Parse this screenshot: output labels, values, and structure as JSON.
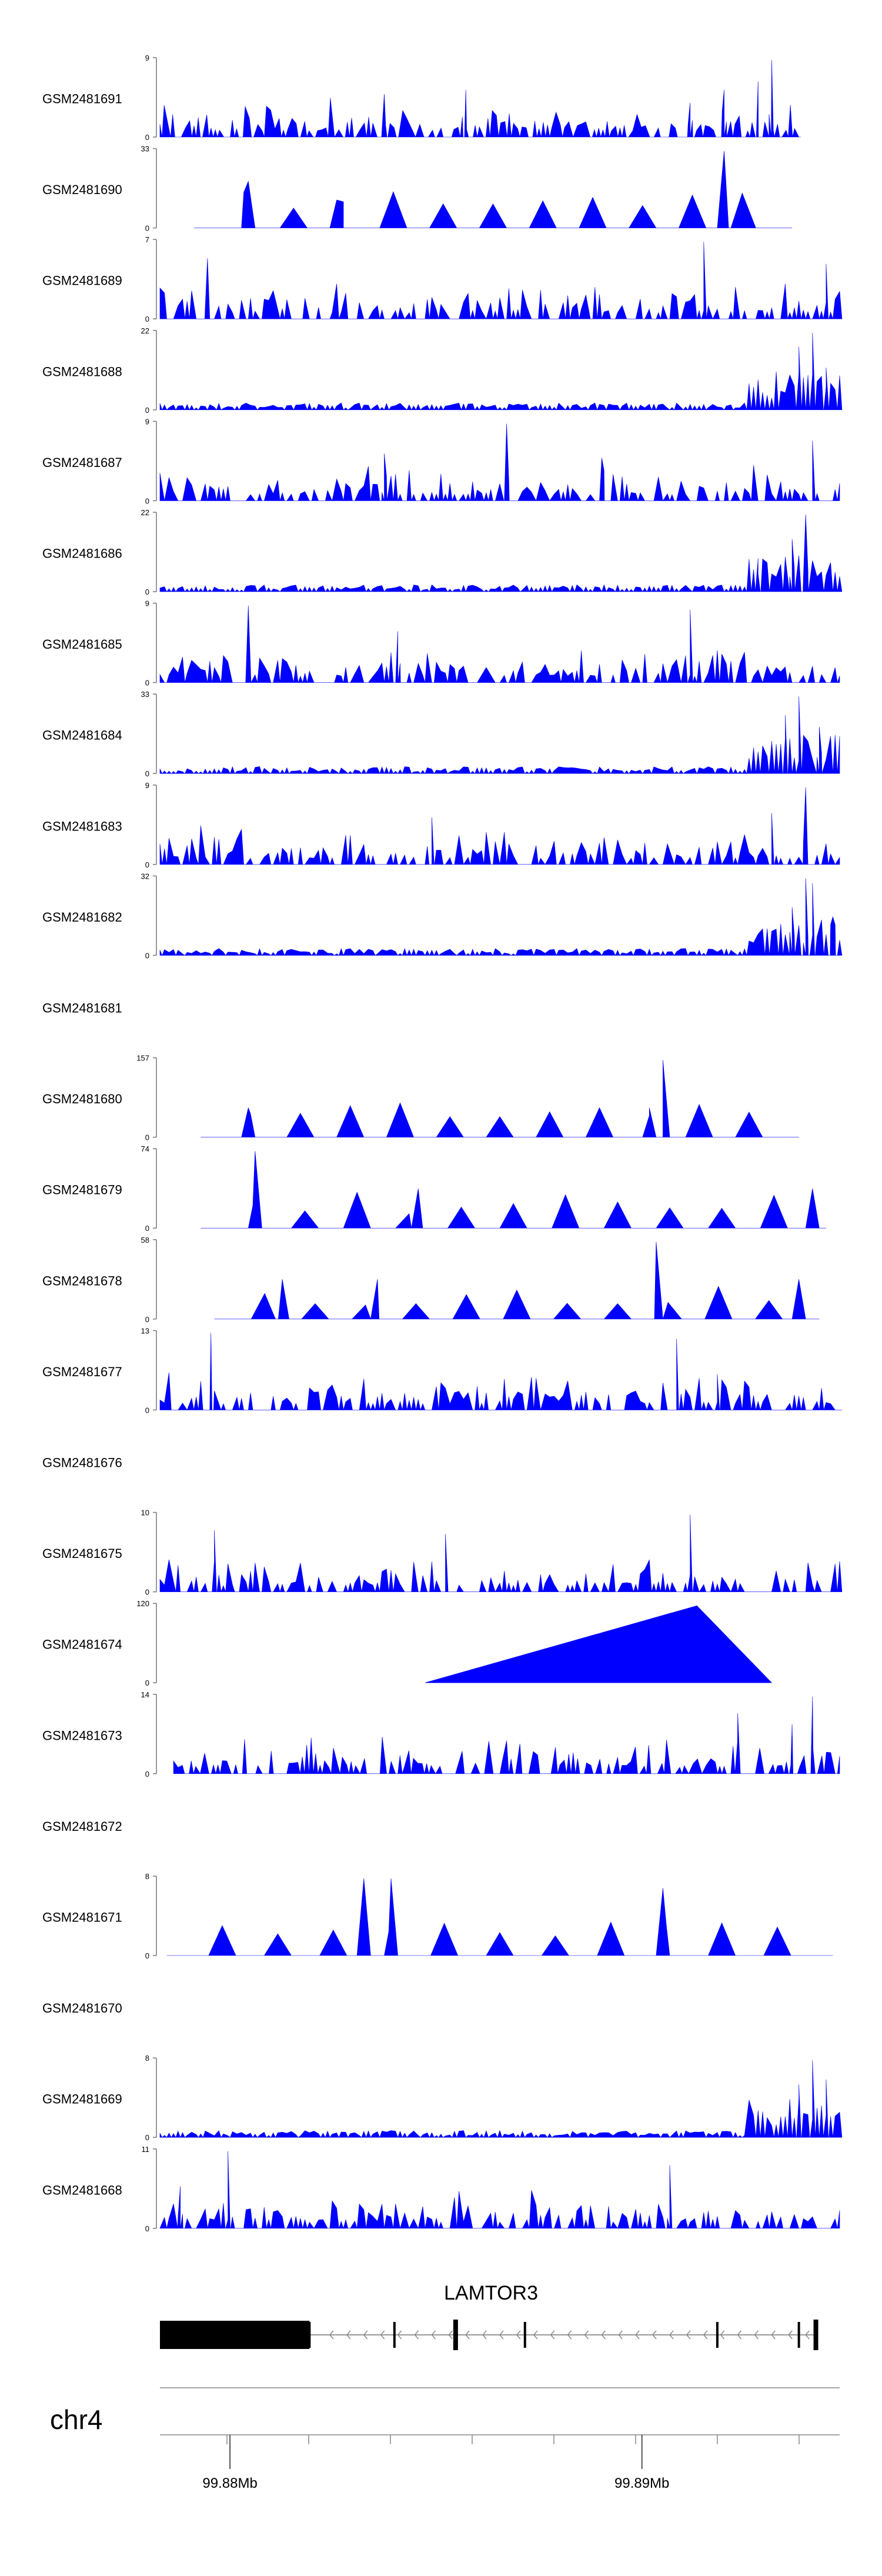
{
  "chart_data": {
    "type": "area",
    "title": "",
    "xlabel": "",
    "ylabel": "",
    "fill_color": "#0000ff",
    "x_range_mb": [
      99.8783,
      99.8948
    ],
    "series": [
      {
        "name": "GSM2481691",
        "ylim": [
          0,
          9
        ],
        "tick_max": "9",
        "tick_min": "0",
        "has_data": true,
        "coverage": [
          0,
          0.94
        ],
        "seed": 11,
        "peaks": [
          [
            0.9,
            9.0
          ],
          [
            0.88,
            6.5
          ],
          [
            0.83,
            5.5
          ],
          [
            0.78,
            4.0
          ],
          [
            0.45,
            5.5
          ],
          [
            0.33,
            5.0
          ]
        ]
      },
      {
        "name": "GSM2481690",
        "ylim": [
          0,
          33
        ],
        "tick_max": "33",
        "tick_min": "0",
        "has_data": true,
        "coverage": [
          0.05,
          0.93
        ],
        "seed": 23,
        "mode": "sparse",
        "peaks": [
          [
            0.83,
            33.0
          ],
          [
            0.13,
            20.0
          ],
          [
            0.26,
            12.0
          ]
        ]
      },
      {
        "name": "GSM2481689",
        "ylim": [
          0,
          7
        ],
        "tick_max": "7",
        "tick_min": "0",
        "has_data": true,
        "coverage": [
          0,
          1
        ],
        "seed": 37,
        "peaks": [
          [
            0.8,
            7.0
          ],
          [
            0.07,
            5.5
          ],
          [
            0.98,
            5.0
          ]
        ]
      },
      {
        "name": "GSM2481688",
        "ylim": [
          0,
          22
        ],
        "tick_max": "22",
        "tick_min": "0",
        "has_data": true,
        "coverage": [
          0,
          1
        ],
        "seed": 41,
        "mode": "tail",
        "peaks": [
          [
            0.96,
            22.0
          ],
          [
            0.94,
            18.0
          ],
          [
            0.98,
            12.0
          ]
        ]
      },
      {
        "name": "GSM2481687",
        "ylim": [
          0,
          9
        ],
        "tick_max": "9",
        "tick_min": "0",
        "has_data": true,
        "coverage": [
          0,
          1
        ],
        "seed": 53,
        "peaks": [
          [
            0.51,
            9.0
          ],
          [
            0.96,
            7.0
          ],
          [
            0.33,
            5.5
          ],
          [
            0.65,
            5.0
          ]
        ]
      },
      {
        "name": "GSM2481686",
        "ylim": [
          0,
          22
        ],
        "tick_max": "22",
        "tick_min": "0",
        "has_data": true,
        "coverage": [
          0,
          1
        ],
        "seed": 67,
        "mode": "tail",
        "peaks": [
          [
            0.95,
            22.0
          ],
          [
            0.93,
            15.0
          ],
          [
            0.88,
            5.0
          ]
        ]
      },
      {
        "name": "GSM2481685",
        "ylim": [
          0,
          9
        ],
        "tick_max": "9",
        "tick_min": "0",
        "has_data": true,
        "coverage": [
          0,
          1
        ],
        "seed": 71,
        "peaks": [
          [
            0.13,
            9.0
          ],
          [
            0.78,
            8.5
          ],
          [
            0.35,
            6.0
          ]
        ]
      },
      {
        "name": "GSM2481684",
        "ylim": [
          0,
          33
        ],
        "tick_max": "33",
        "tick_min": "0",
        "has_data": true,
        "coverage": [
          0,
          1
        ],
        "seed": 83,
        "mode": "tail",
        "peaks": [
          [
            0.94,
            33.0
          ],
          [
            0.92,
            25.0
          ],
          [
            0.97,
            20.0
          ],
          [
            0.9,
            14.0
          ]
        ]
      },
      {
        "name": "GSM2481683",
        "ylim": [
          0,
          9
        ],
        "tick_max": "9",
        "tick_min": "0",
        "has_data": true,
        "coverage": [
          0,
          1
        ],
        "seed": 97,
        "peaks": [
          [
            0.95,
            9.0
          ],
          [
            0.9,
            6.0
          ],
          [
            0.4,
            5.5
          ]
        ]
      },
      {
        "name": "GSM2481682",
        "ylim": [
          0,
          32
        ],
        "tick_max": "32",
        "tick_min": "0",
        "has_data": true,
        "coverage": [
          0,
          1
        ],
        "seed": 101,
        "mode": "tail",
        "peaks": [
          [
            0.95,
            32.0
          ],
          [
            0.96,
            30.0
          ],
          [
            0.93,
            20.0
          ],
          [
            0.99,
            16.0
          ]
        ]
      },
      {
        "name": "GSM2481681",
        "has_data": false
      },
      {
        "name": "GSM2481680",
        "ylim": [
          0,
          157
        ],
        "tick_max": "157",
        "tick_min": "0",
        "has_data": true,
        "coverage": [
          0.06,
          0.94
        ],
        "seed": 113,
        "mode": "sparse",
        "peaks": [
          [
            0.74,
            157.0
          ],
          [
            0.72,
            60.0
          ],
          [
            0.13,
            60.0
          ]
        ]
      },
      {
        "name": "GSM2481679",
        "ylim": [
          0,
          74
        ],
        "tick_max": "74",
        "tick_min": "0",
        "has_data": true,
        "coverage": [
          0.06,
          0.98
        ],
        "seed": 127,
        "mode": "sparse",
        "peaks": [
          [
            0.14,
            74.0
          ],
          [
            0.38,
            38.0
          ],
          [
            0.96,
            38.0
          ]
        ]
      },
      {
        "name": "GSM2481678",
        "ylim": [
          0,
          58
        ],
        "tick_max": "58",
        "tick_min": "0",
        "has_data": true,
        "coverage": [
          0.08,
          0.97
        ],
        "seed": 131,
        "mode": "sparse",
        "peaks": [
          [
            0.73,
            58.0
          ],
          [
            0.94,
            30.0
          ],
          [
            0.18,
            30.0
          ],
          [
            0.32,
            30.0
          ]
        ]
      },
      {
        "name": "GSM2481677",
        "ylim": [
          0,
          13
        ],
        "tick_max": "13",
        "tick_min": "0",
        "has_data": true,
        "coverage": [
          0,
          1
        ],
        "seed": 139,
        "peaks": [
          [
            0.075,
            13.0
          ],
          [
            0.76,
            12.0
          ],
          [
            0.82,
            6.0
          ]
        ]
      },
      {
        "name": "GSM2481676",
        "has_data": false
      },
      {
        "name": "GSM2481675",
        "ylim": [
          0,
          10
        ],
        "tick_max": "10",
        "tick_min": "0",
        "has_data": true,
        "coverage": [
          0,
          1
        ],
        "seed": 149,
        "peaks": [
          [
            0.78,
            10.0
          ],
          [
            0.08,
            8.0
          ],
          [
            0.42,
            7.5
          ]
        ]
      },
      {
        "name": "GSM2481674",
        "ylim": [
          0,
          120
        ],
        "tick_max": "120",
        "tick_min": "0",
        "has_data": true,
        "coverage": [
          0.39,
          0.9
        ],
        "seed": 151,
        "mode": "single",
        "peaks": [
          [
            0.79,
            120.0
          ]
        ]
      },
      {
        "name": "GSM2481673",
        "ylim": [
          0,
          14
        ],
        "tick_max": "14",
        "tick_min": "0",
        "has_data": true,
        "coverage": [
          0.02,
          1
        ],
        "seed": 163,
        "peaks": [
          [
            0.96,
            14.0
          ],
          [
            0.85,
            11.0
          ],
          [
            0.93,
            9.0
          ]
        ]
      },
      {
        "name": "GSM2481672",
        "has_data": false
      },
      {
        "name": "GSM2481671",
        "ylim": [
          0,
          8
        ],
        "tick_max": "8",
        "tick_min": "0",
        "has_data": true,
        "coverage": [
          0.01,
          0.99
        ],
        "seed": 167,
        "mode": "sparse",
        "peaks": [
          [
            0.3,
            8.0
          ],
          [
            0.34,
            8.0
          ],
          [
            0.74,
            7.0
          ]
        ]
      },
      {
        "name": "GSM2481670",
        "has_data": false
      },
      {
        "name": "GSM2481669",
        "ylim": [
          0,
          8
        ],
        "tick_max": "8",
        "tick_min": "0",
        "has_data": true,
        "coverage": [
          0,
          1
        ],
        "seed": 173,
        "mode": "tail",
        "peaks": [
          [
            0.96,
            8.0
          ],
          [
            0.98,
            6.0
          ],
          [
            0.94,
            5.5
          ]
        ]
      },
      {
        "name": "GSM2481668",
        "ylim": [
          0,
          11
        ],
        "tick_max": "11",
        "tick_min": "0",
        "has_data": true,
        "coverage": [
          0,
          1
        ],
        "seed": 179,
        "peaks": [
          [
            0.1,
            11.0
          ],
          [
            0.75,
            9.0
          ],
          [
            0.03,
            6.0
          ]
        ]
      }
    ],
    "gene_model": {
      "name": "LAMTOR3",
      "strand": "-",
      "thick_exon_span": [
        0,
        0.22
      ],
      "exon_marks": [
        0.22,
        0.345,
        0.435,
        0.537,
        0.82,
        0.94,
        0.965
      ],
      "thick_marks": [
        0.435,
        0.965
      ]
    },
    "chromosome": "chr4",
    "x_ticks": [
      99.88,
      99.89
    ],
    "x_tick_labels": [
      "99.88Mb",
      "99.89Mb"
    ]
  }
}
